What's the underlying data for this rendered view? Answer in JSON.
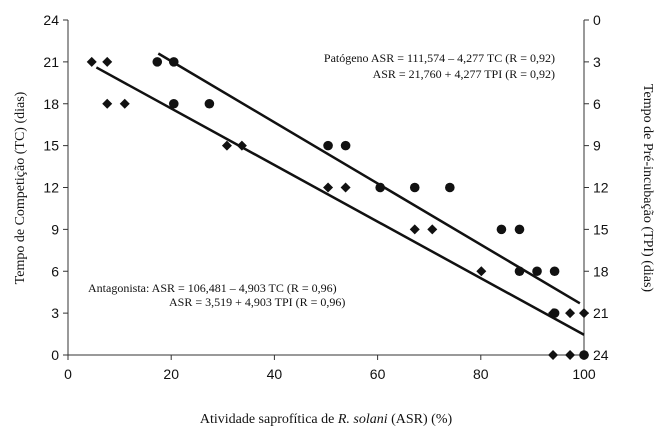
{
  "chart_data": {
    "type": "scatter",
    "xlabel_parts": [
      "Atividade saprofítica de ",
      "R. solani",
      "  (ASR) (%)"
    ],
    "ylabel_left": "Tempo de Competição (TC) (dias)",
    "ylabel_right": "Tempo de Pré-incubação (TPI) (dias)",
    "xlim": [
      0,
      100
    ],
    "ylim_left": [
      0,
      24
    ],
    "ylim_right": [
      24,
      0
    ],
    "x_ticks": [
      "0",
      "20",
      "40",
      "60",
      "80",
      "100"
    ],
    "y_left_ticks": [
      "0",
      "3",
      "6",
      "9",
      "12",
      "15",
      "18",
      "21",
      "24"
    ],
    "y_right_ticks": [
      "24",
      "21",
      "18",
      "15",
      "12",
      "9",
      "6",
      "3",
      "0"
    ],
    "grid": false,
    "series": [
      {
        "marker": "diamond",
        "points": [
          [
            4.6,
            21
          ],
          [
            7.6,
            21
          ],
          [
            7.6,
            18
          ],
          [
            11,
            18
          ],
          [
            30.8,
            15
          ],
          [
            33.7,
            15
          ],
          [
            50.4,
            12
          ],
          [
            53.8,
            12
          ],
          [
            67.2,
            9
          ],
          [
            70.6,
            9
          ],
          [
            80.1,
            6
          ],
          [
            94,
            3
          ],
          [
            97.3,
            3
          ],
          [
            100,
            3
          ],
          [
            94,
            0
          ],
          [
            97.3,
            0
          ],
          [
            100,
            0
          ]
        ],
        "fit": [
          [
            5.5,
            20.6
          ],
          [
            100,
            1.45
          ]
        ]
      },
      {
        "marker": "circle",
        "points": [
          [
            17.3,
            21
          ],
          [
            20.5,
            21
          ],
          [
            20.5,
            18
          ],
          [
            27.4,
            18
          ],
          [
            50.4,
            15
          ],
          [
            53.8,
            15
          ],
          [
            60.5,
            12
          ],
          [
            67.2,
            12
          ],
          [
            74,
            12
          ],
          [
            84,
            9
          ],
          [
            87.5,
            9
          ],
          [
            87.5,
            6
          ],
          [
            90.9,
            6
          ],
          [
            94.3,
            6
          ],
          [
            94.3,
            3
          ],
          [
            100,
            0
          ]
        ],
        "fit": [
          [
            17.5,
            21.6
          ],
          [
            99.2,
            3.7
          ]
        ]
      }
    ],
    "annotations": {
      "patogeno_line1": "Patógeno ASR = 111,574 – 4,277 TC (R = 0,92)",
      "patogeno_line2": "ASR = 21,760 + 4,277 TPI (R = 0,92)",
      "antagonista_line1": "Antagonista: ASR = 106,481 – 4,903 TC (R = 0,96)",
      "antagonista_line2": "ASR = 3,519 + 4,903 TPI (R = 0,96)"
    }
  }
}
